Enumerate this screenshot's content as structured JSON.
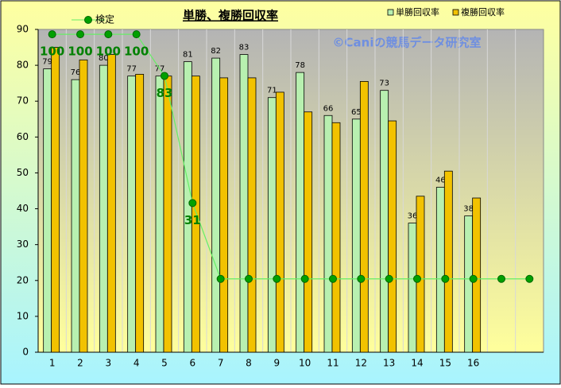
{
  "chart_data": {
    "type": "bar",
    "title": "単勝、複勝回収率",
    "annotation": "©Caniの競馬データ研究室",
    "categories": [
      "1",
      "2",
      "3",
      "4",
      "5",
      "6",
      "7",
      "8",
      "9",
      "10",
      "11",
      "12",
      "13",
      "14",
      "15",
      "16",
      null,
      null
    ],
    "ylim": [
      0,
      90
    ],
    "yticks": [
      0,
      10,
      20,
      30,
      40,
      50,
      60,
      70,
      80,
      90
    ],
    "y2lim": [
      -30,
      102
    ],
    "grid": "vertical",
    "series": [
      {
        "name": "単勝回収率",
        "color": "#b8f0b0",
        "values": [
          79,
          76,
          80,
          77,
          77,
          81,
          82,
          83,
          71,
          78,
          66,
          65,
          73,
          36,
          46,
          38,
          null,
          null
        ]
      },
      {
        "name": "複勝回収率",
        "color": "#f2c200",
        "values": [
          85,
          81.5,
          83,
          77.5,
          77,
          77,
          76.5,
          76.5,
          72.5,
          67,
          64,
          75.5,
          64.5,
          43.5,
          50.5,
          43,
          null,
          null
        ]
      },
      {
        "name": "検定",
        "type": "line",
        "axis": "y2",
        "color": "#00a000",
        "values": [
          100,
          100,
          100,
          100,
          83,
          31,
          0,
          0,
          0,
          0,
          0,
          0,
          0,
          0,
          0,
          0,
          0,
          0
        ],
        "value_labels": [
          "100",
          "100",
          "100",
          "100",
          "83",
          "31",
          null,
          null,
          null,
          null,
          null,
          null,
          null,
          null,
          null,
          null,
          null,
          null
        ]
      }
    ]
  }
}
